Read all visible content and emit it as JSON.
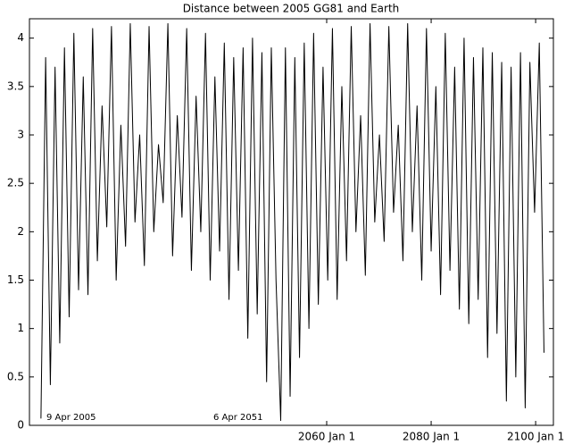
{
  "chart_data": {
    "type": "line",
    "title": "Distance between 2005 GG81 and Earth",
    "annotations": [
      "9 Apr 2005",
      "6 Apr 2051"
    ],
    "x": [
      2005.3,
      2006.2,
      2007.1,
      2008.0,
      2008.9,
      2009.8,
      2010.7,
      2011.6,
      2012.5,
      2013.4,
      2014.3,
      2015.2,
      2016.1,
      2017.0,
      2017.9,
      2018.8,
      2019.7,
      2020.6,
      2021.5,
      2022.4,
      2023.3,
      2024.2,
      2025.1,
      2026.0,
      2026.9,
      2027.8,
      2028.7,
      2029.6,
      2030.5,
      2031.4,
      2032.3,
      2033.2,
      2034.1,
      2035.0,
      2035.9,
      2036.8,
      2037.7,
      2038.6,
      2039.5,
      2040.4,
      2041.3,
      2042.2,
      2043.1,
      2044.0,
      2044.9,
      2045.8,
      2046.7,
      2047.6,
      2048.5,
      2049.4,
      2050.3,
      2051.2,
      2052.1,
      2053.0,
      2053.9,
      2054.8,
      2055.7,
      2056.6,
      2057.5,
      2058.4,
      2059.3,
      2060.2,
      2061.1,
      2062.0,
      2062.9,
      2063.8,
      2064.7,
      2065.6,
      2066.5,
      2067.4,
      2068.3,
      2069.2,
      2070.1,
      2071.0,
      2071.9,
      2072.8,
      2073.7,
      2074.6,
      2075.5,
      2076.4,
      2077.3,
      2078.2,
      2079.1,
      2080.0,
      2080.9,
      2081.8,
      2082.7,
      2083.6,
      2084.5,
      2085.4,
      2086.3,
      2087.2,
      2088.1,
      2089.0,
      2089.9,
      2090.8,
      2091.7,
      2092.6,
      2093.5,
      2094.4,
      2095.3,
      2096.2,
      2097.1,
      2098.0,
      2098.9,
      2099.8,
      2100.7,
      2101.6
    ],
    "series": [
      {
        "color": "#000000",
        "values": [
          0.07,
          3.8,
          0.42,
          3.7,
          0.85,
          3.9,
          1.12,
          4.05,
          1.4,
          3.6,
          1.35,
          4.1,
          1.7,
          3.3,
          2.05,
          4.12,
          1.5,
          3.1,
          1.85,
          4.15,
          2.1,
          3.0,
          1.65,
          4.12,
          2.0,
          2.9,
          2.3,
          4.15,
          1.75,
          3.2,
          2.15,
          4.1,
          1.6,
          3.4,
          2.0,
          4.05,
          1.5,
          3.6,
          1.8,
          3.95,
          1.3,
          3.8,
          1.6,
          3.9,
          0.9,
          4.0,
          1.15,
          3.85,
          0.45,
          3.9,
          1.5,
          0.05,
          3.9,
          0.3,
          3.8,
          0.7,
          3.95,
          1.0,
          4.05,
          1.25,
          3.7,
          1.5,
          4.1,
          1.3,
          3.5,
          1.7,
          4.12,
          2.0,
          3.2,
          1.55,
          4.15,
          2.1,
          3.0,
          1.9,
          4.12,
          2.2,
          3.1,
          1.7,
          4.15,
          2.0,
          3.3,
          1.5,
          4.1,
          1.8,
          3.5,
          1.35,
          4.05,
          1.6,
          3.7,
          1.2,
          4.0,
          1.05,
          3.8,
          1.3,
          3.9,
          0.7,
          3.85,
          0.95,
          3.75,
          0.25,
          3.7,
          0.5,
          3.85,
          0.18,
          3.75,
          2.2,
          3.95,
          0.75
        ]
      }
    ],
    "xlim": [
      2003.1,
      2103.4
    ],
    "xticks": [
      {
        "value": 2060,
        "label": "2060 Jan 1"
      },
      {
        "value": 2080,
        "label": "2080 Jan 1"
      },
      {
        "value": 2100,
        "label": "2100 Jan 1"
      }
    ],
    "ylim": [
      0,
      4.2
    ],
    "yticks": [
      0,
      0.5,
      1,
      1.5,
      2,
      2.5,
      3,
      3.5,
      4
    ],
    "grid": false
  }
}
